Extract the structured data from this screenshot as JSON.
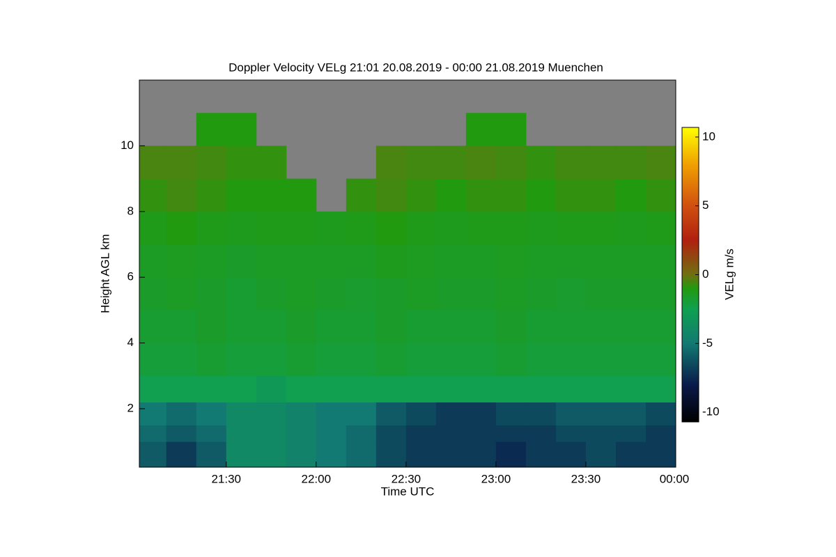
{
  "chart_data": {
    "type": "heatmap",
    "title": "Doppler Velocity VELg   21:01 20.08.2019 - 00:00 21.08.2019 Muenchen",
    "x_label": "Time UTC",
    "y_label": "Height AGL km",
    "colorbar_label": "VELg m/s",
    "x": [
      1,
      10,
      20,
      30,
      40,
      50,
      60,
      70,
      80,
      90,
      100,
      110,
      120,
      130,
      140,
      150,
      160,
      170,
      180
    ],
    "y": [
      0.22,
      1,
      1.5,
      2.2,
      3,
      4,
      5,
      6,
      7,
      8,
      9,
      10,
      11,
      12
    ],
    "values": [
      [
        -6,
        -7,
        -6,
        -4,
        -4,
        -4.5,
        -5,
        -5.5,
        -6.5,
        -7,
        -7,
        -7,
        -7.5,
        -7,
        -7,
        -6.5,
        -7,
        -7
      ],
      [
        -5.5,
        -6,
        -5.5,
        -4,
        -4,
        -4.5,
        -5,
        -5.5,
        -6.5,
        -7,
        -7,
        -7,
        -7,
        -7,
        -6.5,
        -6.5,
        -6.5,
        -7
      ],
      [
        -5,
        -5.5,
        -5,
        -4,
        -4,
        -4.5,
        -5,
        -5,
        -6,
        -6.5,
        -7,
        -7,
        -6.5,
        -6.5,
        -6,
        -6,
        -6,
        -6.5
      ],
      [
        -2.5,
        -2.5,
        -2.5,
        -2.5,
        -3,
        -2.5,
        -2.5,
        -2.5,
        -2.5,
        -2.5,
        -2.5,
        -2.5,
        -2.5,
        -2.5,
        -2.5,
        -2.5,
        -2.5,
        -2.5
      ],
      [
        -2,
        -2,
        -1.8,
        -2,
        -2,
        -1.8,
        -2,
        -2,
        -1.8,
        -2,
        -2,
        -2,
        -1.8,
        -2,
        -2,
        -2,
        -2,
        -2
      ],
      [
        -1.8,
        -1.8,
        -1.6,
        -1.8,
        -1.8,
        -1.6,
        -1.8,
        -1.8,
        -1.6,
        -1.8,
        -1.8,
        -1.8,
        -1.6,
        -1.8,
        -1.8,
        -1.8,
        -1.8,
        -1.8
      ],
      [
        -1.6,
        -1.5,
        -1.6,
        -1.8,
        -1.6,
        -1.5,
        -1.6,
        -1.7,
        -1.6,
        -1.5,
        -1.6,
        -1.6,
        -1.5,
        -1.6,
        -1.7,
        -1.6,
        -1.6,
        -1.6
      ],
      [
        -1.5,
        -1.4,
        -1.5,
        -1.6,
        -1.5,
        -1.5,
        -1.5,
        -1.5,
        -1.3,
        -1.4,
        -1.5,
        -1.5,
        -1.4,
        -1.5,
        -1.5,
        -1.5,
        -1.5,
        -1.5
      ],
      [
        -1.2,
        -1,
        -1.2,
        -1.3,
        -1.2,
        -1.2,
        -1.3,
        -1.2,
        -1,
        -1.2,
        -1.3,
        -1.2,
        -1.2,
        -1.3,
        -1.2,
        -1.2,
        -1.3,
        -1.2
      ],
      [
        -0.8,
        -0.6,
        -0.8,
        -1,
        -1,
        -1,
        null,
        -0.8,
        -0.6,
        -0.8,
        -1,
        -0.8,
        -0.8,
        -1,
        -0.8,
        -0.8,
        -1,
        -0.8
      ],
      [
        -0.5,
        -0.5,
        -0.6,
        -0.8,
        -0.8,
        null,
        null,
        null,
        -0.5,
        -0.6,
        -0.6,
        -0.5,
        -0.6,
        -0.8,
        -0.6,
        -0.6,
        -0.6,
        -0.5
      ],
      [
        null,
        null,
        -1,
        -1,
        null,
        null,
        null,
        null,
        null,
        null,
        null,
        -1,
        -1,
        null,
        null,
        null,
        null,
        null
      ],
      [
        null,
        null,
        null,
        null,
        null,
        null,
        null,
        null,
        null,
        null,
        null,
        null,
        null,
        null,
        null,
        null,
        null,
        null
      ]
    ],
    "nodata_color": "#808080",
    "colorscale": [
      {
        "value": -10.7,
        "color": "#000000"
      },
      {
        "value": -8,
        "color": "#0a1a4a"
      },
      {
        "value": -5,
        "color": "#127a72"
      },
      {
        "value": -2.5,
        "color": "#10a050"
      },
      {
        "value": -1,
        "color": "#229a10"
      },
      {
        "value": 0,
        "color": "#707010"
      },
      {
        "value": 2.5,
        "color": "#b02010"
      },
      {
        "value": 5,
        "color": "#d05010"
      },
      {
        "value": 8,
        "color": "#f0a000"
      },
      {
        "value": 10.7,
        "color": "#ffff00"
      }
    ],
    "xlim": [
      1,
      180
    ],
    "ylim": [
      0.22,
      12
    ],
    "clim": [
      -10.7,
      10.7
    ],
    "xticks": [
      {
        "value": 30,
        "label": "21:30"
      },
      {
        "value": 60,
        "label": "22:00"
      },
      {
        "value": 90,
        "label": "22:30"
      },
      {
        "value": 120,
        "label": "23:00"
      },
      {
        "value": 150,
        "label": "23:30"
      },
      {
        "value": 180,
        "label": "00:00"
      }
    ],
    "yticks": [
      2,
      4,
      6,
      8,
      10
    ],
    "cticks": [
      -10,
      -5,
      0,
      5,
      10
    ]
  }
}
